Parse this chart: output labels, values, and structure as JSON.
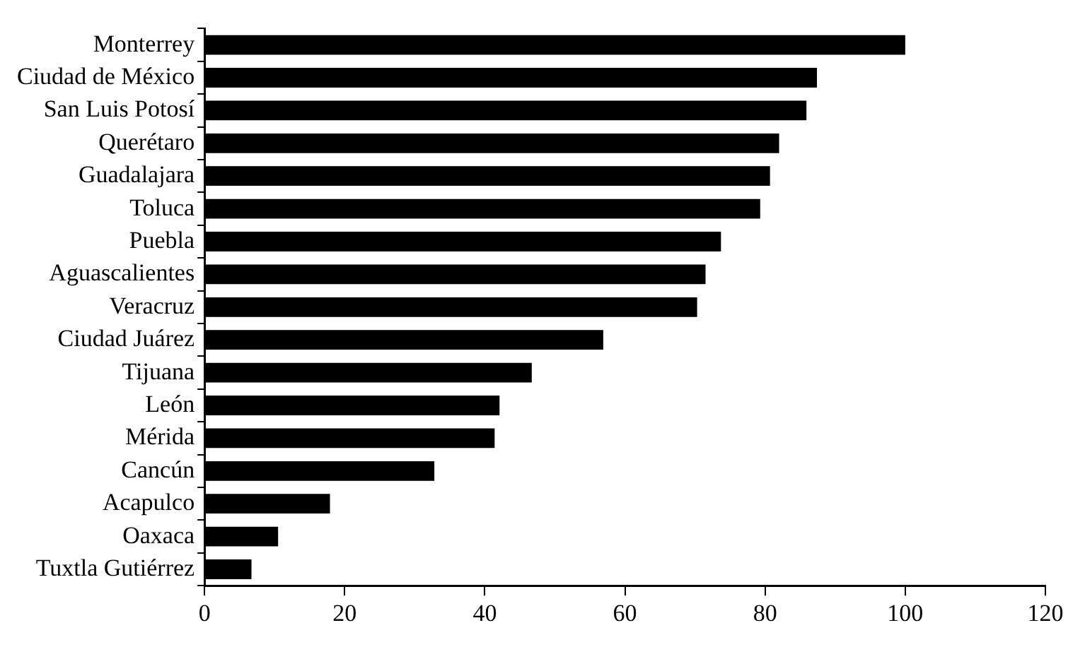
{
  "chart_data": {
    "type": "bar",
    "orientation": "horizontal",
    "categories": [
      "Monterrey",
      "Ciudad de México",
      "San Luis Potosí",
      "Querétaro",
      "Guadalajara",
      "Toluca",
      "Puebla",
      "Aguascalientes",
      "Veracruz",
      "Ciudad Juárez",
      "Tijuana",
      "León",
      "Mérida",
      "Cancún",
      "Acapulco",
      "Oaxaca",
      "Tuxtla Gutiérrez"
    ],
    "values": [
      100,
      87.4,
      85.9,
      82,
      80.7,
      79.3,
      73.7,
      71.5,
      70.3,
      56.9,
      46.7,
      42.1,
      41.4,
      32.8,
      17.9,
      10.5,
      6.7
    ],
    "color": "#000000",
    "xlim": [
      0,
      120
    ],
    "xticks": [
      0,
      20,
      40,
      60,
      80,
      100,
      120
    ],
    "grid": false,
    "legend": false
  }
}
